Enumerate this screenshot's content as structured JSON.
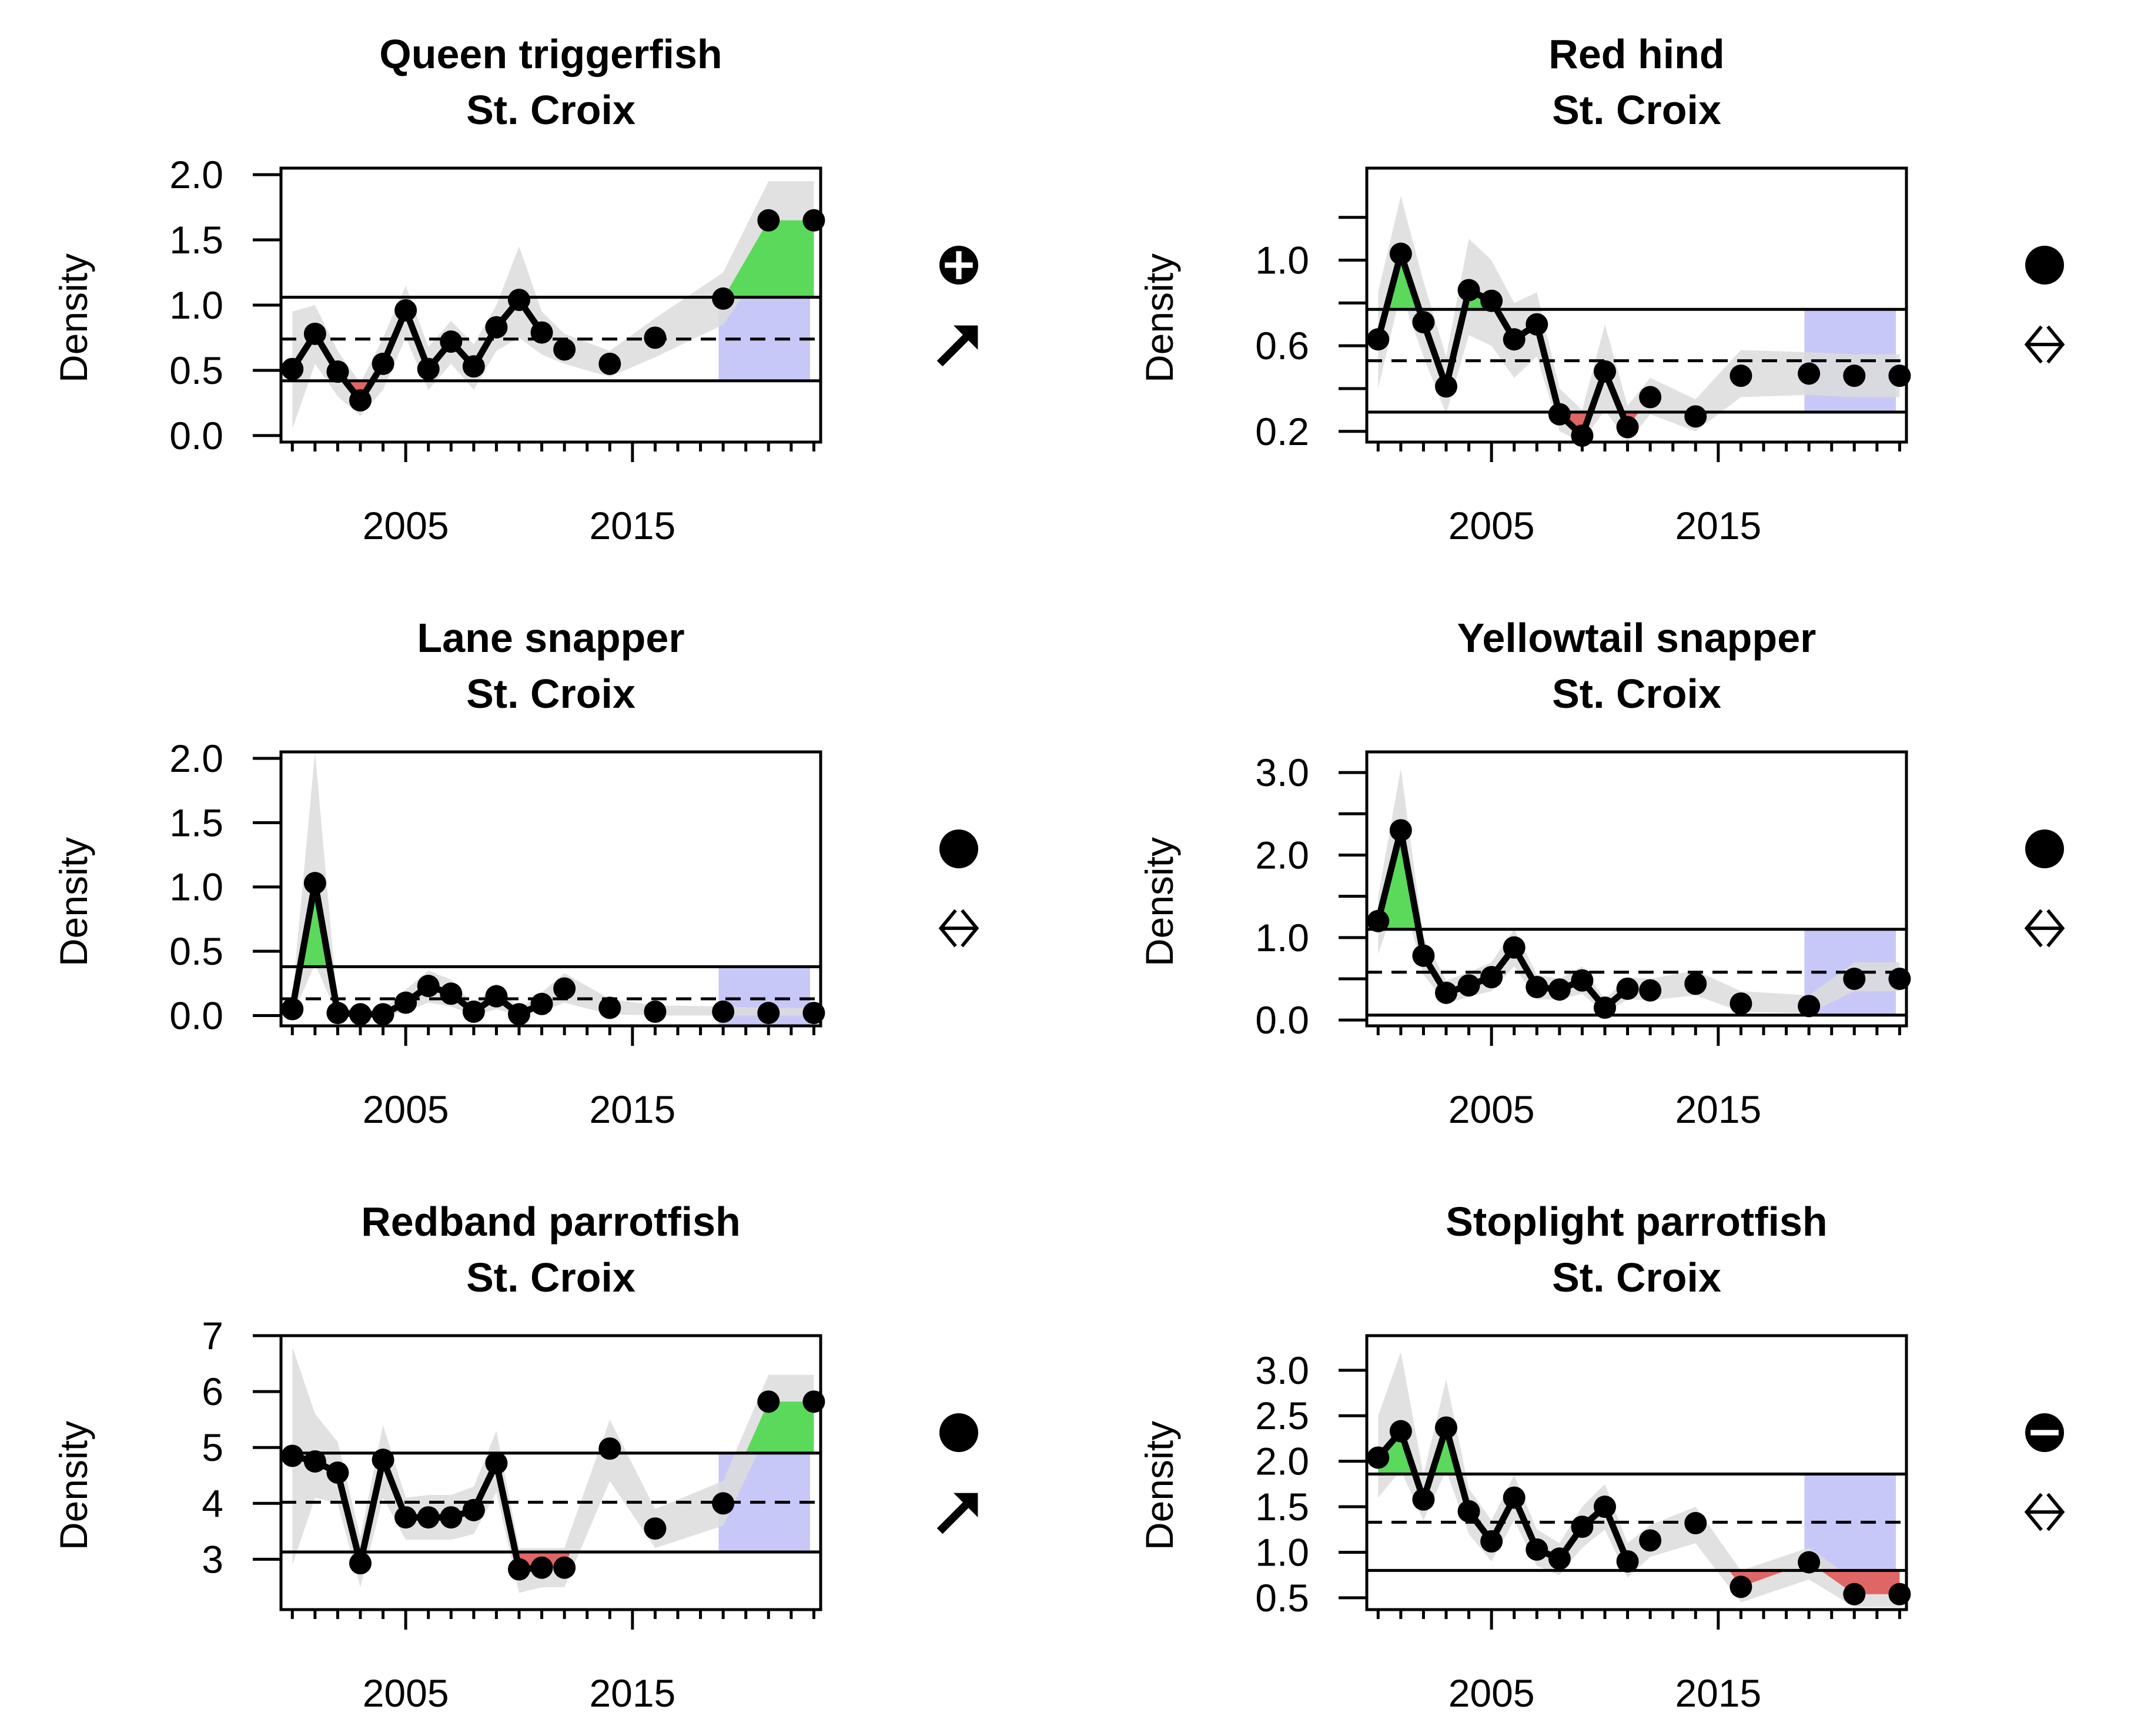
{
  "figure": {
    "colors": {
      "above_fill": "#5bd95b",
      "below_fill": "#e06666",
      "recent_window": "#c8c8f8",
      "ci_band": "#dcdcdc",
      "line": "#000000"
    }
  },
  "chart_data": [
    {
      "type": "line",
      "title": "Queen triggerfish",
      "subtitle": "St. Croix",
      "ylabel": "Density",
      "xlim": [
        1999.5,
        2023.3
      ],
      "ylim": [
        -0.05,
        2.05
      ],
      "yticks": [
        0.0,
        0.5,
        1.0,
        1.5,
        2.0
      ],
      "ytick_labels": [
        "0.0",
        "0.5",
        "1.0",
        "1.5",
        "2.0"
      ],
      "xticks": [
        2005,
        2015
      ],
      "xtick_labels": [
        "2005",
        "2015"
      ],
      "mean": 0.74,
      "upper": 1.06,
      "lower": 0.42,
      "recent_window": [
        2019,
        2023
      ],
      "x": [
        2000,
        2001,
        2002,
        2003,
        2004,
        2005,
        2006,
        2007,
        2008,
        2009,
        2010,
        2011,
        2012,
        2014,
        2016,
        2019,
        2021,
        2023
      ],
      "y": [
        0.51,
        0.78,
        0.49,
        0.27,
        0.55,
        0.96,
        0.51,
        0.72,
        0.53,
        0.83,
        1.04,
        0.79,
        0.66,
        0.55,
        0.75,
        1.05,
        1.65,
        1.65
      ],
      "connected": [
        true,
        true,
        true,
        true,
        true,
        true,
        true,
        true,
        true,
        true,
        true,
        true,
        false,
        false,
        false,
        false,
        false,
        false
      ],
      "lo": [
        0.05,
        0.55,
        0.3,
        0.15,
        0.35,
        0.75,
        0.35,
        0.55,
        0.35,
        0.65,
        0.75,
        0.62,
        0.55,
        0.45,
        0.6,
        0.85,
        1.35,
        1.35
      ],
      "hi": [
        0.95,
        1.0,
        0.65,
        0.4,
        0.75,
        1.15,
        0.68,
        0.88,
        0.7,
        1.0,
        1.45,
        0.95,
        0.78,
        0.65,
        0.9,
        1.25,
        1.95,
        1.95
      ],
      "status_icon": "circle-plus-icon",
      "trend_icon": "arrow-up-right-icon"
    },
    {
      "type": "line",
      "title": "Red hind",
      "subtitle": "St. Croix",
      "ylabel": "Density",
      "xlim": [
        1999.5,
        2023.3
      ],
      "ylim": [
        0.15,
        1.43
      ],
      "yticks": [
        0.2,
        0.6,
        1.0
      ],
      "ytick_labels": [
        "0.2",
        "0.6",
        "1.0"
      ],
      "yticks_minor": [
        0.4,
        0.8,
        1.2
      ],
      "xticks": [
        2005,
        2015
      ],
      "xtick_labels": [
        "2005",
        "2015"
      ],
      "mean": 0.53,
      "upper": 0.77,
      "lower": 0.29,
      "recent_window": [
        2019,
        2023
      ],
      "x": [
        2000,
        2001,
        2002,
        2003,
        2004,
        2005,
        2006,
        2007,
        2008,
        2009,
        2010,
        2011,
        2012,
        2014,
        2016,
        2019,
        2021,
        2023
      ],
      "y": [
        0.63,
        1.03,
        0.71,
        0.41,
        0.86,
        0.81,
        0.63,
        0.7,
        0.28,
        0.18,
        0.48,
        0.22,
        0.36,
        0.27,
        0.46,
        0.47,
        0.46,
        0.46
      ],
      "connected": [
        true,
        true,
        true,
        true,
        true,
        true,
        true,
        true,
        true,
        true,
        true,
        true,
        false,
        false,
        false,
        false,
        false,
        false
      ],
      "lo": [
        0.4,
        0.85,
        0.55,
        0.28,
        0.65,
        0.6,
        0.45,
        0.55,
        0.2,
        0.12,
        0.3,
        0.15,
        0.28,
        0.2,
        0.36,
        0.37,
        0.36,
        0.36
      ],
      "hi": [
        0.85,
        1.3,
        0.9,
        0.55,
        1.1,
        1.0,
        0.8,
        0.85,
        0.4,
        0.3,
        0.7,
        0.32,
        0.45,
        0.35,
        0.58,
        0.57,
        0.56,
        0.56
      ],
      "status_icon": "filled-circle-icon",
      "trend_icon": "double-arrow-horizontal-icon"
    },
    {
      "type": "line",
      "title": "Lane snapper",
      "subtitle": "St. Croix",
      "ylabel": "Density",
      "xlim": [
        1999.5,
        2023.3
      ],
      "ylim": [
        -0.08,
        2.05
      ],
      "yticks": [
        0.0,
        0.5,
        1.0,
        1.5,
        2.0
      ],
      "ytick_labels": [
        "0.0",
        "0.5",
        "1.0",
        "1.5",
        "2.0"
      ],
      "xticks": [
        2005,
        2015
      ],
      "xtick_labels": [
        "2005",
        "2015"
      ],
      "mean": 0.13,
      "upper": 0.38,
      "lower": -0.08,
      "recent_window": [
        2019,
        2023
      ],
      "x": [
        2000,
        2001,
        2002,
        2003,
        2004,
        2005,
        2006,
        2007,
        2008,
        2009,
        2010,
        2011,
        2012,
        2014,
        2016,
        2019,
        2021,
        2023
      ],
      "y": [
        0.05,
        1.03,
        0.02,
        0.01,
        0.01,
        0.1,
        0.23,
        0.17,
        0.03,
        0.15,
        0.01,
        0.09,
        0.21,
        0.06,
        0.03,
        0.03,
        0.02,
        0.02
      ],
      "connected": [
        true,
        true,
        true,
        true,
        true,
        true,
        true,
        true,
        true,
        true,
        true,
        true,
        false,
        false,
        false,
        false,
        false,
        false
      ],
      "lo": [
        0.0,
        0.4,
        0.0,
        0.0,
        0.0,
        0.03,
        0.1,
        0.07,
        0.0,
        0.05,
        0.0,
        0.03,
        0.1,
        0.01,
        0.0,
        0.0,
        0.0,
        0.0
      ],
      "hi": [
        0.15,
        2.05,
        0.07,
        0.04,
        0.05,
        0.2,
        0.35,
        0.28,
        0.08,
        0.25,
        0.05,
        0.18,
        0.33,
        0.13,
        0.08,
        0.07,
        0.06,
        0.06
      ],
      "status_icon": "filled-circle-icon",
      "trend_icon": "double-arrow-horizontal-icon"
    },
    {
      "type": "line",
      "title": "Yellowtail snapper",
      "subtitle": "St. Croix",
      "ylabel": "Density",
      "xlim": [
        1999.5,
        2023.3
      ],
      "ylim": [
        -0.07,
        3.25
      ],
      "yticks": [
        0.0,
        1.0,
        2.0,
        3.0
      ],
      "ytick_labels": [
        "0.0",
        "1.0",
        "2.0",
        "3.0"
      ],
      "yticks_minor": [
        0.5,
        1.5,
        2.5
      ],
      "xticks": [
        2005,
        2015
      ],
      "xtick_labels": [
        "2005",
        "2015"
      ],
      "mean": 0.58,
      "upper": 1.1,
      "lower": 0.06,
      "recent_window": [
        2019,
        2023
      ],
      "x": [
        2000,
        2001,
        2002,
        2003,
        2004,
        2005,
        2006,
        2007,
        2008,
        2009,
        2010,
        2011,
        2012,
        2014,
        2016,
        2019,
        2021,
        2023
      ],
      "y": [
        1.2,
        2.3,
        0.78,
        0.33,
        0.42,
        0.52,
        0.88,
        0.4,
        0.37,
        0.48,
        0.15,
        0.38,
        0.36,
        0.44,
        0.2,
        0.17,
        0.5,
        0.5
      ],
      "connected": [
        true,
        true,
        true,
        true,
        true,
        true,
        true,
        true,
        true,
        true,
        true,
        true,
        false,
        false,
        false,
        false,
        false,
        false
      ],
      "lo": [
        0.8,
        1.6,
        0.55,
        0.2,
        0.28,
        0.35,
        0.65,
        0.25,
        0.25,
        0.32,
        0.08,
        0.25,
        0.24,
        0.3,
        0.1,
        0.08,
        0.35,
        0.35
      ],
      "hi": [
        1.5,
        3.05,
        1.0,
        0.48,
        0.58,
        0.7,
        1.1,
        0.55,
        0.5,
        0.65,
        0.25,
        0.52,
        0.5,
        0.6,
        0.35,
        0.3,
        0.7,
        0.7
      ],
      "status_icon": "filled-circle-icon",
      "trend_icon": "double-arrow-horizontal-icon"
    },
    {
      "type": "line",
      "title": "Redband parrotfish",
      "subtitle": "St. Croix",
      "ylabel": "Density",
      "xlim": [
        1999.5,
        2023.3
      ],
      "ylim": [
        2.1,
        7.0
      ],
      "yticks": [
        3,
        4,
        5,
        6,
        7
      ],
      "ytick_labels": [
        "3",
        "4",
        "5",
        "6",
        "7"
      ],
      "xticks": [
        2005,
        2015
      ],
      "xtick_labels": [
        "2005",
        "2015"
      ],
      "mean": 4.02,
      "upper": 4.9,
      "lower": 3.13,
      "recent_window": [
        2019,
        2023
      ],
      "x": [
        2000,
        2001,
        2002,
        2003,
        2004,
        2005,
        2006,
        2007,
        2008,
        2009,
        2010,
        2011,
        2012,
        2014,
        2016,
        2019,
        2021,
        2023
      ],
      "y": [
        4.85,
        4.75,
        4.55,
        2.93,
        4.78,
        3.75,
        3.75,
        3.75,
        3.88,
        4.72,
        2.82,
        2.85,
        2.85,
        4.98,
        3.55,
        4.0,
        5.82,
        5.82
      ],
      "connected": [
        true,
        true,
        true,
        true,
        true,
        true,
        true,
        true,
        true,
        true,
        true,
        true,
        false,
        false,
        false,
        false,
        false,
        false
      ],
      "lo": [
        2.9,
        4.1,
        4.0,
        2.5,
        4.1,
        3.35,
        3.35,
        3.35,
        3.45,
        4.2,
        2.4,
        2.5,
        2.5,
        4.4,
        3.2,
        3.6,
        5.3,
        5.3
      ],
      "hi": [
        6.8,
        5.6,
        5.1,
        3.4,
        5.4,
        4.1,
        4.15,
        4.15,
        4.3,
        5.3,
        3.2,
        3.2,
        3.2,
        5.5,
        3.9,
        4.4,
        6.3,
        6.3
      ],
      "status_icon": "filled-circle-icon",
      "trend_icon": "arrow-up-right-icon"
    },
    {
      "type": "line",
      "title": "Stoplight parrotfish",
      "subtitle": "St. Croix",
      "ylabel": "Density",
      "xlim": [
        1999.5,
        2023.3
      ],
      "ylim": [
        0.37,
        3.38
      ],
      "yticks": [
        0.5,
        1.0,
        1.5,
        2.0,
        2.5,
        3.0
      ],
      "ytick_labels": [
        "0.5",
        "1.0",
        "1.5",
        "2.0",
        "2.5",
        "3.0"
      ],
      "xticks": [
        2005,
        2015
      ],
      "xtick_labels": [
        "2005",
        "2015"
      ],
      "mean": 1.33,
      "upper": 1.86,
      "lower": 0.8,
      "recent_window": [
        2019,
        2023
      ],
      "x": [
        2000,
        2001,
        2002,
        2003,
        2004,
        2005,
        2006,
        2007,
        2008,
        2009,
        2010,
        2011,
        2012,
        2014,
        2016,
        2019,
        2021,
        2023
      ],
      "y": [
        2.04,
        2.33,
        1.58,
        2.37,
        1.45,
        1.12,
        1.6,
        1.03,
        0.93,
        1.28,
        1.5,
        0.9,
        1.13,
        1.32,
        0.62,
        0.89,
        0.54,
        0.54
      ],
      "connected": [
        true,
        true,
        true,
        true,
        true,
        true,
        true,
        true,
        true,
        true,
        true,
        true,
        false,
        false,
        false,
        false,
        false,
        false
      ],
      "lo": [
        1.6,
        1.9,
        1.35,
        1.9,
        1.2,
        0.9,
        1.35,
        0.85,
        0.75,
        1.05,
        1.25,
        0.72,
        0.95,
        1.1,
        0.45,
        0.7,
        0.4,
        0.4
      ],
      "hi": [
        2.5,
        3.2,
        1.85,
        2.9,
        1.7,
        1.35,
        1.85,
        1.25,
        1.1,
        1.5,
        1.75,
        1.1,
        1.3,
        1.5,
        0.8,
        1.05,
        0.7,
        0.7
      ],
      "status_icon": "circle-minus-icon",
      "trend_icon": "double-arrow-horizontal-icon"
    }
  ]
}
